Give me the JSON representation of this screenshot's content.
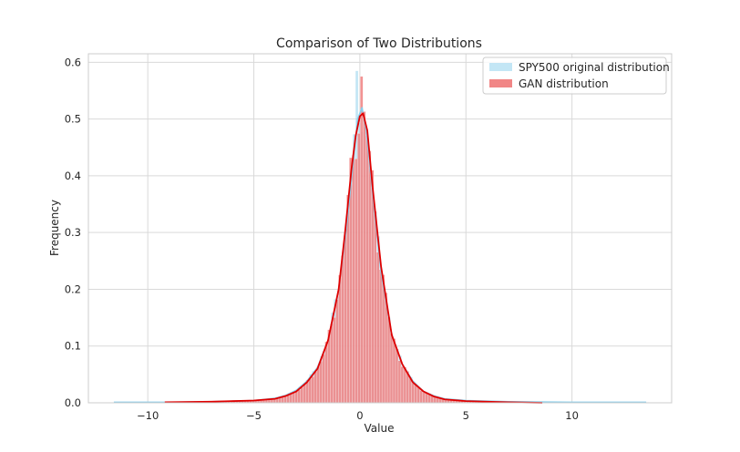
{
  "chart_data": {
    "type": "histogram",
    "title": "Comparison of Two Distributions",
    "xlabel": "Value",
    "ylabel": "Frequency",
    "xlim": [
      -12.8,
      14.7
    ],
    "ylim": [
      0,
      0.615
    ],
    "xticks": [
      -10,
      -5,
      0,
      5,
      10
    ],
    "xtick_labels": [
      "−10",
      "−5",
      "0",
      "5",
      "10"
    ],
    "yticks": [
      0.0,
      0.1,
      0.2,
      0.3,
      0.4,
      0.5,
      0.6
    ],
    "ytick_labels": [
      "0.0",
      "0.1",
      "0.2",
      "0.3",
      "0.4",
      "0.5",
      "0.6"
    ],
    "grid": true,
    "legend_position": "top-right",
    "series": [
      {
        "name": "SPY500 original distribution",
        "color": "#87ceeb",
        "kde_color": "#87ceeb",
        "x_range": [
          -11.6,
          13.5
        ],
        "peak": {
          "x": -0.1,
          "y": 0.585
        },
        "kde": [
          [
            -11.6,
            0.001
          ],
          [
            -9,
            0.001
          ],
          [
            -7,
            0.002
          ],
          [
            -5,
            0.004
          ],
          [
            -4,
            0.008
          ],
          [
            -3.5,
            0.013
          ],
          [
            -3,
            0.022
          ],
          [
            -2.5,
            0.038
          ],
          [
            -2,
            0.062
          ],
          [
            -1.5,
            0.11
          ],
          [
            -1,
            0.2
          ],
          [
            -0.6,
            0.32
          ],
          [
            -0.3,
            0.43
          ],
          [
            -0.1,
            0.5
          ],
          [
            0.1,
            0.52
          ],
          [
            0.3,
            0.48
          ],
          [
            0.6,
            0.37
          ],
          [
            1,
            0.23
          ],
          [
            1.5,
            0.12
          ],
          [
            2,
            0.068
          ],
          [
            2.5,
            0.038
          ],
          [
            3,
            0.02
          ],
          [
            3.5,
            0.012
          ],
          [
            4,
            0.007
          ],
          [
            5,
            0.004
          ],
          [
            7,
            0.002
          ],
          [
            10,
            0.001
          ],
          [
            13.5,
            0.001
          ]
        ]
      },
      {
        "name": "GAN distribution",
        "color": "#f08080",
        "kde_color": "#e00000",
        "x_range": [
          -9.2,
          8.6
        ],
        "peak": {
          "x": 0.05,
          "y": 0.575
        },
        "kde": [
          [
            -9.2,
            0.001
          ],
          [
            -7,
            0.002
          ],
          [
            -5,
            0.004
          ],
          [
            -4,
            0.007
          ],
          [
            -3.5,
            0.012
          ],
          [
            -3,
            0.02
          ],
          [
            -2.5,
            0.036
          ],
          [
            -2,
            0.06
          ],
          [
            -1.5,
            0.11
          ],
          [
            -1,
            0.2
          ],
          [
            -0.7,
            0.3
          ],
          [
            -0.4,
            0.41
          ],
          [
            -0.2,
            0.47
          ],
          [
            0,
            0.505
          ],
          [
            0.15,
            0.51
          ],
          [
            0.35,
            0.48
          ],
          [
            0.6,
            0.38
          ],
          [
            1,
            0.24
          ],
          [
            1.5,
            0.12
          ],
          [
            2,
            0.068
          ],
          [
            2.5,
            0.036
          ],
          [
            3,
            0.02
          ],
          [
            3.5,
            0.011
          ],
          [
            4,
            0.006
          ],
          [
            5,
            0.003
          ],
          [
            7,
            0.001
          ],
          [
            8.6,
            0.0
          ]
        ]
      }
    ]
  }
}
